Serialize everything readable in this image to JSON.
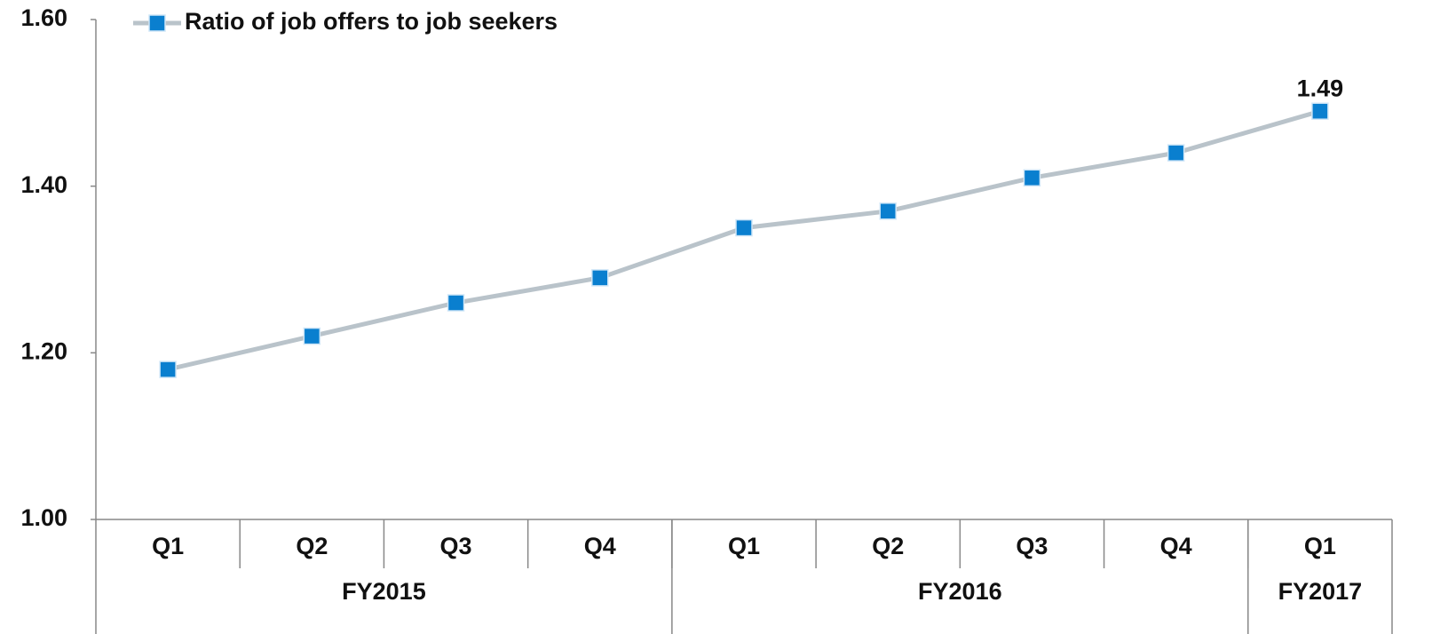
{
  "chart_data": {
    "type": "line",
    "categories": [
      "Q1",
      "Q2",
      "Q3",
      "Q4",
      "Q1",
      "Q2",
      "Q3",
      "Q4",
      "Q1"
    ],
    "groups": [
      {
        "label": "FY2015",
        "span": 4
      },
      {
        "label": "FY2016",
        "span": 4
      },
      {
        "label": "FY2017",
        "span": 1
      }
    ],
    "series": [
      {
        "name": "Ratio of job offers to job seekers",
        "color": "#b9c3ca",
        "marker_color": "#0a7fcf",
        "values": [
          1.18,
          1.22,
          1.26,
          1.29,
          1.35,
          1.37,
          1.41,
          1.44,
          1.49
        ],
        "value_labels": [
          null,
          null,
          null,
          null,
          null,
          null,
          null,
          null,
          "1.49"
        ]
      }
    ],
    "ylim": [
      1,
      1.6
    ],
    "yticks": [
      {
        "value": 1,
        "label": "1.00"
      },
      {
        "value": 1.2,
        "label": "1.20"
      },
      {
        "value": 1.4,
        "label": "1.40"
      },
      {
        "value": 1.6,
        "label": "1.60"
      }
    ],
    "grid": false,
    "legend": "top"
  }
}
